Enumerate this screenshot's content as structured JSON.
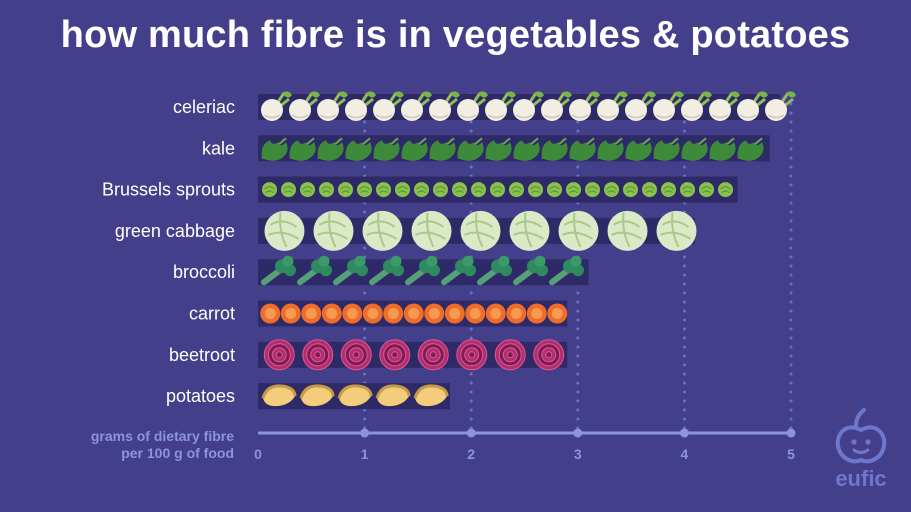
{
  "title": "how much fibre is in vegetables & potatoes",
  "chart_data": {
    "type": "bar",
    "orientation": "horizontal",
    "categories": [
      "celeriac",
      "kale",
      "Brussels sprouts",
      "green cabbage",
      "broccoli",
      "carrot",
      "beetroot",
      "potatoes"
    ],
    "values": [
      4.9,
      4.8,
      4.5,
      4.1,
      3.1,
      2.9,
      2.9,
      1.8
    ],
    "icons": [
      "celeriac-icon",
      "kale-icon",
      "brussels-sprout-icon",
      "cabbage-icon",
      "broccoli-icon",
      "carrot-slice-icon",
      "beetroot-slice-icon",
      "potato-icon"
    ],
    "xlabel": [
      "grams of dietary fibre",
      "per 100 g of food"
    ],
    "xlim": [
      0,
      5
    ],
    "xticks": [
      "0",
      "1",
      "2",
      "3",
      "4",
      "5"
    ],
    "grid": "dotted vertical",
    "colors": {
      "background": "#443f8a",
      "bar": "#2e2a67",
      "axis": "#8c93e0",
      "grid": "#6b70c2"
    }
  },
  "logo": {
    "text": "eufic"
  }
}
